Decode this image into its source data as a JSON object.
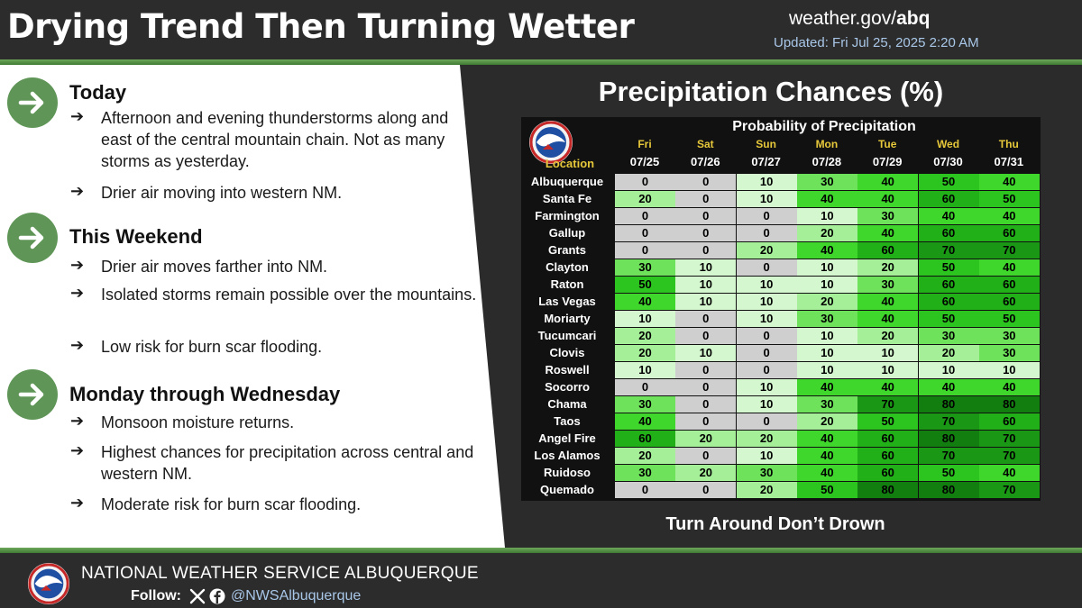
{
  "header": {
    "title": "Drying Trend Then Turning Wetter",
    "site_domain": "weather.gov/",
    "site_office": "abq",
    "updated": "Updated: Fri Jul 25, 2025 2:20 AM"
  },
  "sections": [
    {
      "heading": "Today",
      "bullets": [
        "Afternoon and evening thunderstorms along and east of the central mountain chain. Not as many storms as yesterday.",
        "Drier air moving into western NM."
      ]
    },
    {
      "heading": "This Weekend",
      "bullets": [
        "Drier air moves farther into NM.",
        "Isolated storms remain possible over the mountains.",
        "Low risk for burn scar flooding."
      ]
    },
    {
      "heading": "Monday through Wednesday",
      "bullets": [
        "Monsoon moisture returns.",
        "Highest chances for precipitation across central and western NM.",
        "Moderate risk for burn scar flooding."
      ]
    }
  ],
  "bullet_glyph": "➔",
  "panel": {
    "title": "Precipitation Chances (%)",
    "table_title": "Probability of Precipitation",
    "location_header": "Location",
    "days": [
      "Fri",
      "Sat",
      "Sun",
      "Mon",
      "Tue",
      "Wed",
      "Thu"
    ],
    "dates": [
      "07/25",
      "07/26",
      "07/27",
      "07/28",
      "07/29",
      "07/30",
      "07/31"
    ],
    "rows": [
      {
        "name": "Albuquerque",
        "values": [
          "0",
          "0",
          "10",
          "30",
          "40",
          "50",
          "40"
        ]
      },
      {
        "name": "Santa Fe",
        "values": [
          "20",
          "0",
          "10",
          "40",
          "40",
          "60",
          "50"
        ]
      },
      {
        "name": "Farmington",
        "values": [
          "0",
          "0",
          "0",
          "10",
          "30",
          "40",
          "40"
        ]
      },
      {
        "name": "Gallup",
        "values": [
          "0",
          "0",
          "0",
          "20",
          "40",
          "60",
          "60"
        ]
      },
      {
        "name": "Grants",
        "values": [
          "0",
          "0",
          "20",
          "40",
          "60",
          "70",
          "70"
        ]
      },
      {
        "name": "Clayton",
        "values": [
          "30",
          "10",
          "0",
          "10",
          "20",
          "50",
          "40"
        ]
      },
      {
        "name": "Raton",
        "values": [
          "50",
          "10",
          "10",
          "10",
          "30",
          "60",
          "60"
        ]
      },
      {
        "name": "Las Vegas",
        "values": [
          "40",
          "10",
          "10",
          "20",
          "40",
          "60",
          "60"
        ]
      },
      {
        "name": "Moriarty",
        "values": [
          "10",
          "0",
          "10",
          "30",
          "40",
          "50",
          "50"
        ]
      },
      {
        "name": "Tucumcari",
        "values": [
          "20",
          "0",
          "0",
          "10",
          "20",
          "30",
          "30"
        ]
      },
      {
        "name": "Clovis",
        "values": [
          "20",
          "10",
          "0",
          "10",
          "10",
          "20",
          "30"
        ]
      },
      {
        "name": "Roswell",
        "values": [
          "10",
          "0",
          "0",
          "10",
          "10",
          "10",
          "10"
        ]
      },
      {
        "name": "Socorro",
        "values": [
          "0",
          "0",
          "10",
          "40",
          "40",
          "40",
          "40"
        ]
      },
      {
        "name": "Chama",
        "values": [
          "30",
          "0",
          "10",
          "30",
          "70",
          "80",
          "80"
        ]
      },
      {
        "name": "Taos",
        "values": [
          "40",
          "0",
          "0",
          "20",
          "50",
          "70",
          "60"
        ]
      },
      {
        "name": "Angel Fire",
        "values": [
          "60",
          "20",
          "20",
          "40",
          "60",
          "80",
          "70"
        ]
      },
      {
        "name": "Los Alamos",
        "values": [
          "20",
          "0",
          "10",
          "40",
          "60",
          "70",
          "70"
        ]
      },
      {
        "name": "Ruidoso",
        "values": [
          "30",
          "20",
          "30",
          "40",
          "60",
          "50",
          "40"
        ]
      },
      {
        "name": "Quemado",
        "values": [
          "0",
          "0",
          "20",
          "50",
          "80",
          "80",
          "70"
        ]
      }
    ],
    "footer_text": "Turn Around Don’t Drown"
  },
  "footer": {
    "office": "NATIONAL WEATHER SERVICE ALBUQUERQUE",
    "follow_label": "Follow:",
    "handle": "@NWSAlbuquerque"
  },
  "colors": {
    "green_arrow": "#5f9657",
    "day_label": "#e6c83a",
    "updated_text": "#a9c7e8",
    "pop_0": "#cfcfcf",
    "pop_10": "#d5f7cf",
    "pop_20": "#a6ef99",
    "pop_30": "#6ee25b",
    "pop_40": "#3fd72c",
    "pop_50": "#2cc51f",
    "pop_60": "#21b018",
    "pop_70": "#1a9714",
    "pop_80": "#137e10"
  },
  "icons": {
    "section_arrow": "arrow-right-icon",
    "x": "x-twitter-icon",
    "facebook": "facebook-icon",
    "logo": "nws-logo-icon"
  }
}
